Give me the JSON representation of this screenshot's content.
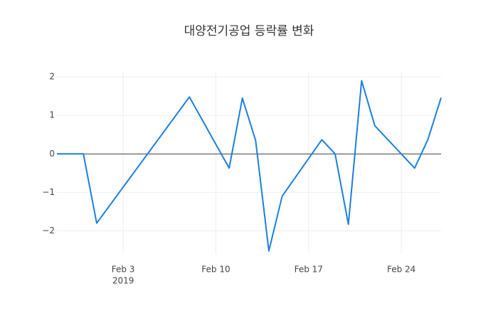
{
  "chart_data": {
    "type": "line",
    "title": "대양전기공업 등락률 변화",
    "x": [
      "2019-01-29",
      "2019-01-30",
      "2019-01-31",
      "2019-02-01",
      "2019-02-08",
      "2019-02-11",
      "2019-02-12",
      "2019-02-13",
      "2019-02-14",
      "2019-02-15",
      "2019-02-18",
      "2019-02-19",
      "2019-02-20",
      "2019-02-21",
      "2019-02-22",
      "2019-02-25",
      "2019-02-26",
      "2019-02-27"
    ],
    "series": [
      {
        "color": "#1c7fdd",
        "values": [
          0,
          0,
          0,
          -1.8,
          1.48,
          -0.37,
          1.45,
          0.35,
          -2.52,
          -1.1,
          0.37,
          0,
          -1.83,
          1.9,
          0.73,
          -0.37,
          0.37,
          1.46
        ]
      }
    ],
    "xlim": [
      "2019-01-29",
      "2019-02-27"
    ],
    "xticks": [
      {
        "value": "2019-02-03",
        "label": "Feb 3"
      },
      {
        "value": "2019-02-10",
        "label": "Feb 10"
      },
      {
        "value": "2019-02-17",
        "label": "Feb 17"
      },
      {
        "value": "2019-02-24",
        "label": "Feb 24"
      }
    ],
    "x_year_label": "2019",
    "ylim": [
      -2.6,
      2.15
    ],
    "yticks": [
      {
        "value": -2,
        "label": "−2"
      },
      {
        "value": -1,
        "label": "−1"
      },
      0,
      1,
      2
    ],
    "grid": true,
    "zero_line": true
  }
}
